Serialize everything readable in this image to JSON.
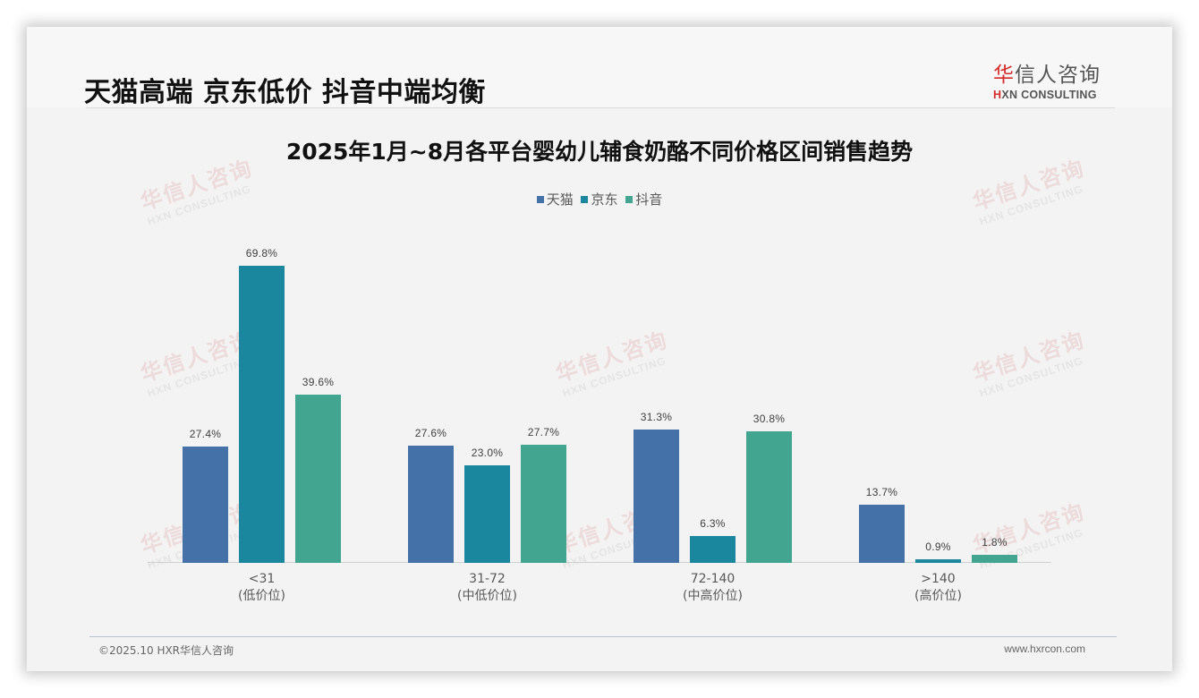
{
  "header": {
    "headline": "天猫高端 京东低价 抖音中端均衡",
    "logo_cn_accent": "华",
    "logo_cn_rest": "信人咨询",
    "logo_en_accent": "H",
    "logo_en_rest": "XN CONSULTING"
  },
  "watermark": {
    "cn": "华信人咨询",
    "en": "HXN CONSULTING"
  },
  "footer": {
    "copyright": "©2025.10 HXR华信人咨询",
    "website": "www.hxrcon.com"
  },
  "colors": {
    "tmall": "#4472a8",
    "jd": "#1a879e",
    "douyin": "#41a58f",
    "brand_red": "#d62a2a"
  },
  "chart_data": {
    "type": "bar",
    "title": "2025年1月~8月各平台婴幼儿辅食奶酪不同价格区间销售趋势",
    "xlabel": "",
    "ylabel": "",
    "ylim": [
      0,
      77
    ],
    "grid": false,
    "legend_position": "top",
    "categories": [
      "<31\n(低价位)",
      "31-72\n(中低价位)",
      "72-140\n(中高价位)",
      ">140\n(高价位)"
    ],
    "category_ranges": [
      "<31",
      "31-72",
      "72-140",
      ">140"
    ],
    "category_tiers": [
      "(低价位)",
      "(中低价位)",
      "(中高价位)",
      "(高价位)"
    ],
    "series": [
      {
        "name": "天猫",
        "color": "#4472a8",
        "values": [
          27.4,
          27.6,
          31.3,
          13.7
        ],
        "labels": [
          "27.4%",
          "27.6%",
          "31.3%",
          "13.7%"
        ]
      },
      {
        "name": "京东",
        "color": "#1a879e",
        "values": [
          69.8,
          23.0,
          6.3,
          0.9
        ],
        "labels": [
          "69.8%",
          "23.0%",
          "6.3%",
          "0.9%"
        ]
      },
      {
        "name": "抖音",
        "color": "#41a58f",
        "values": [
          39.6,
          27.7,
          30.8,
          1.8
        ],
        "labels": [
          "39.6%",
          "27.7%",
          "30.8%",
          "1.8%"
        ]
      }
    ]
  }
}
